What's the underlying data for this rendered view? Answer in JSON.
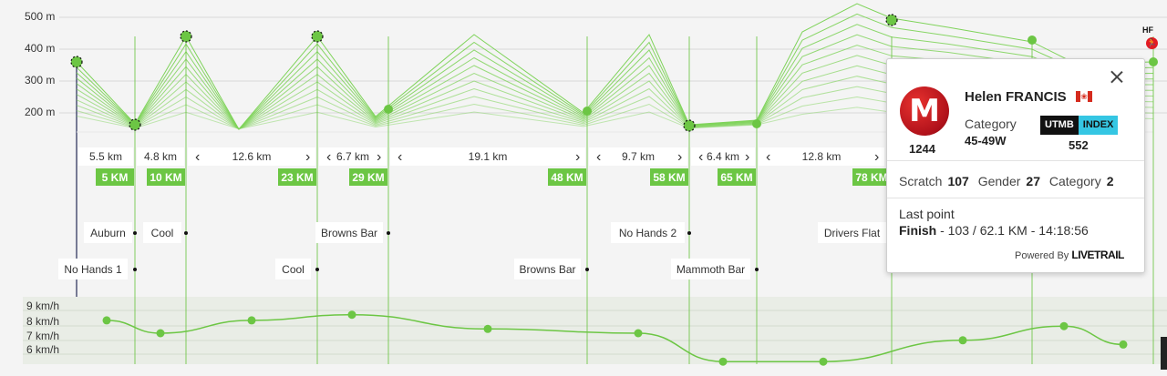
{
  "elevation_axis": [
    "500 m",
    "400 m",
    "300 m",
    "200 m"
  ],
  "speed_axis": [
    "9 km/h",
    "8 km/h",
    "7 km/h",
    "6 km/h"
  ],
  "segment_distances": [
    {
      "label": "5.5 km",
      "left_arrow": false,
      "right_arrow": false
    },
    {
      "label": "4.8 km",
      "left_arrow": false,
      "right_arrow": false
    },
    {
      "label": "12.6 km",
      "left_arrow": true,
      "right_arrow": true
    },
    {
      "label": "6.7 km",
      "left_arrow": true,
      "right_arrow": true
    },
    {
      "label": "19.1 km",
      "left_arrow": true,
      "right_arrow": true
    },
    {
      "label": "9.7 km",
      "left_arrow": true,
      "right_arrow": true
    },
    {
      "label": "6.4 km",
      "left_arrow": true,
      "right_arrow": true
    },
    {
      "label": "12.8 km",
      "left_arrow": true,
      "right_arrow": true
    }
  ],
  "km_markers": [
    "5 KM",
    "10 KM",
    "23 KM",
    "29 KM",
    "48 KM",
    "58 KM",
    "65 KM",
    "78 KM"
  ],
  "aid_stations_upper": [
    "Auburn",
    "Cool",
    "Browns Bar",
    "No Hands 2",
    "Drivers Flat"
  ],
  "aid_stations_lower": [
    "No Hands 1",
    "Cool",
    "Browns Bar",
    "Mammoth Bar"
  ],
  "speed_points_kmh": [
    8.3,
    7.4,
    8.3,
    8.7,
    7.7,
    7.4,
    5.4,
    5.4,
    6.9,
    7.9,
    6.6
  ],
  "colors": {
    "accent": "#6cc644",
    "line": "#7fd35a",
    "background": "#f4f4f4",
    "brand_red": "#d0121c"
  },
  "finish_flag": "HF",
  "runner_card": {
    "name": "Helen FRANCIS",
    "country_flag": "canada-flag-icon",
    "bib": "1244",
    "category_label": "Category",
    "category": "45-49W",
    "utmb_label": "UTMB",
    "index_label": "INDEX",
    "utmb_index": "552",
    "scratch_label": "Scratch",
    "scratch": "107",
    "gender_label": "Gender",
    "gender": "27",
    "category_rank_label": "Category",
    "category_rank": "2",
    "last_point_label": "Last point",
    "last_point_name": "Finish",
    "last_point_detail": " - 103 / 62.1 KM - 14:18:56",
    "powered_by": "Powered By",
    "powered_brand": "LIVETRAIL"
  }
}
